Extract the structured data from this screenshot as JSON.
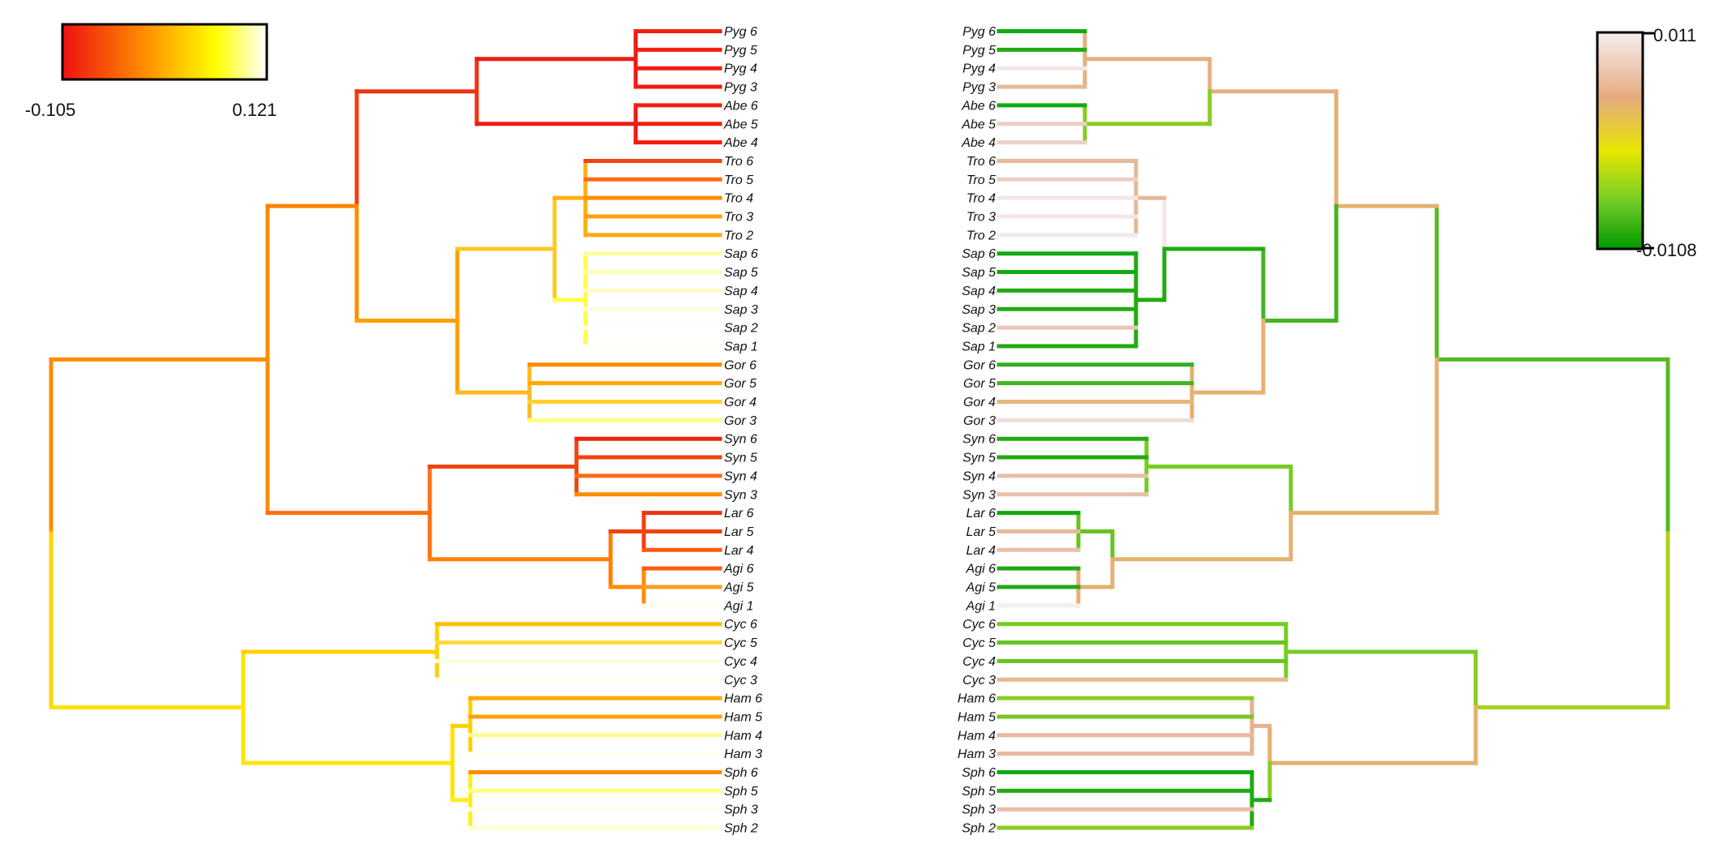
{
  "left_tree": {
    "legend": {
      "min_label": "-0.105",
      "max_label": "0.121",
      "gradient": [
        "#ee1111",
        "#ff8c00",
        "#ffff00",
        "#ffffff"
      ]
    },
    "tips": [
      "Pyg 6",
      "Pyg 5",
      "Pyg 4",
      "Pyg 3",
      "Abe 6",
      "Abe 5",
      "Abe 4",
      "Tro 6",
      "Tro 5",
      "Tro 4",
      "Tro 3",
      "Tro 2",
      "Sap 6",
      "Sap 5",
      "Sap 4",
      "Sap 3",
      "Sap 2",
      "Sap 1",
      "Gor 6",
      "Gor 5",
      "Gor 4",
      "Gor 3",
      "Syn 6",
      "Syn 5",
      "Syn 4",
      "Syn 3",
      "Lar 6",
      "Lar 5",
      "Lar 4",
      "Agi 6",
      "Agi 5",
      "Agi 1",
      "Cyc 6",
      "Cyc 5",
      "Cyc 4",
      "Cyc 3",
      "Ham 6",
      "Ham 5",
      "Ham 4",
      "Ham 3",
      "Sph 6",
      "Sph 5",
      "Sph 3",
      "Sph 2"
    ]
  },
  "right_tree": {
    "legend": {
      "max_label": "0.011",
      "min_label": "-0.0108",
      "gradient": [
        "#f5eeee",
        "#e5aa80",
        "#e6e600",
        "#73cc26",
        "#009900"
      ]
    },
    "tips": [
      "Pyg 6",
      "Pyg 5",
      "Pyg 4",
      "Pyg 3",
      "Abe 6",
      "Abe 5",
      "Abe 4",
      "Tro 6",
      "Tro 5",
      "Tro 4",
      "Tro 3",
      "Tro 2",
      "Sap 6",
      "Sap 5",
      "Sap 4",
      "Sap 3",
      "Sap 2",
      "Sap 1",
      "Gor 6",
      "Gor 5",
      "Gor 4",
      "Gor 3",
      "Syn 6",
      "Syn 5",
      "Syn 4",
      "Syn 3",
      "Lar 6",
      "Lar 5",
      "Lar 4",
      "Agi 6",
      "Agi 5",
      "Agi 1",
      "Cyc 6",
      "Cyc 5",
      "Cyc 4",
      "Cyc 3",
      "Ham 6",
      "Ham 5",
      "Ham 4",
      "Ham 3",
      "Sph 6",
      "Sph 5",
      "Sph 3",
      "Sph 2"
    ]
  }
}
